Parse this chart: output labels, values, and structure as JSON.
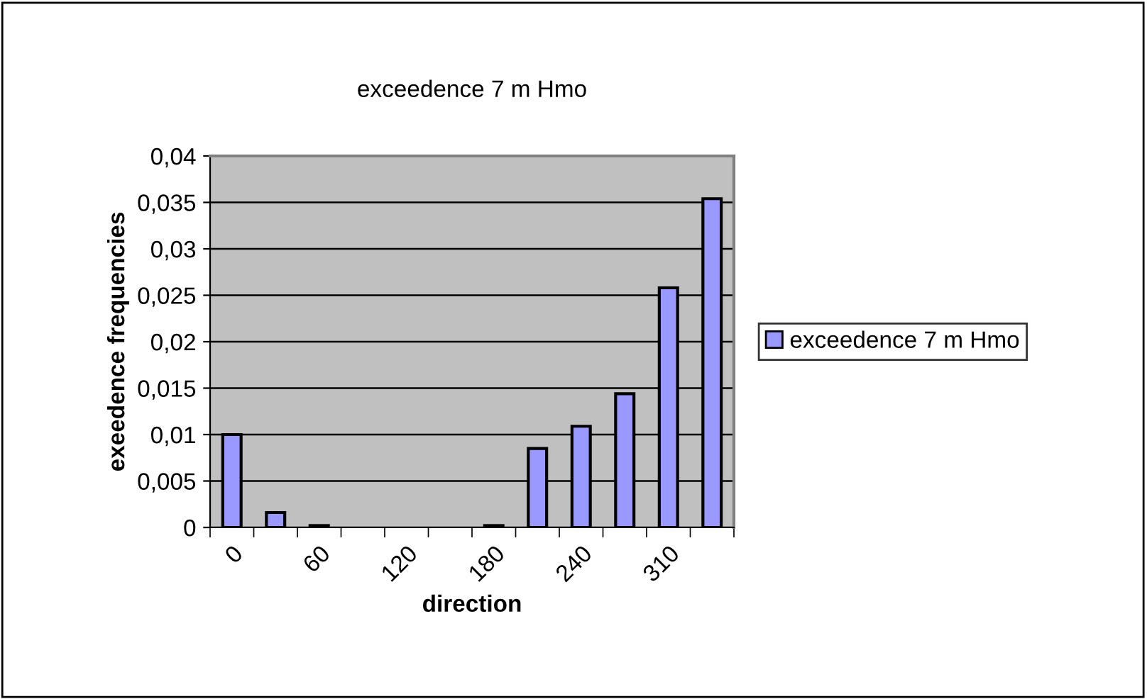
{
  "chart_data": {
    "type": "bar",
    "title": "exceedence 7 m Hmo",
    "xlabel": "direction",
    "ylabel": "exeedence frequencies",
    "categories": [
      "0",
      null,
      "60",
      null,
      "120",
      null,
      "180",
      null,
      "240",
      null,
      "310",
      null
    ],
    "series": [
      {
        "name": "exceedence 7 m Hmo",
        "color": "#9999ff",
        "values": [
          0.01,
          0.0016,
          0.0002,
          null,
          null,
          null,
          0.0002,
          0.0085,
          0.0109,
          0.0144,
          0.0258,
          0.0354
        ]
      }
    ],
    "ylim": [
      0,
      0.04
    ],
    "yticks": [
      {
        "value": 0,
        "label": "0"
      },
      {
        "value": 0.005,
        "label": "0,005"
      },
      {
        "value": 0.01,
        "label": "0,01"
      },
      {
        "value": 0.015,
        "label": "0,015"
      },
      {
        "value": 0.02,
        "label": "0,02"
      },
      {
        "value": 0.025,
        "label": "0,025"
      },
      {
        "value": 0.03,
        "label": "0,03"
      },
      {
        "value": 0.035,
        "label": "0,035"
      },
      {
        "value": 0.04,
        "label": "0,04"
      }
    ],
    "grid": "y",
    "legend": "right"
  }
}
